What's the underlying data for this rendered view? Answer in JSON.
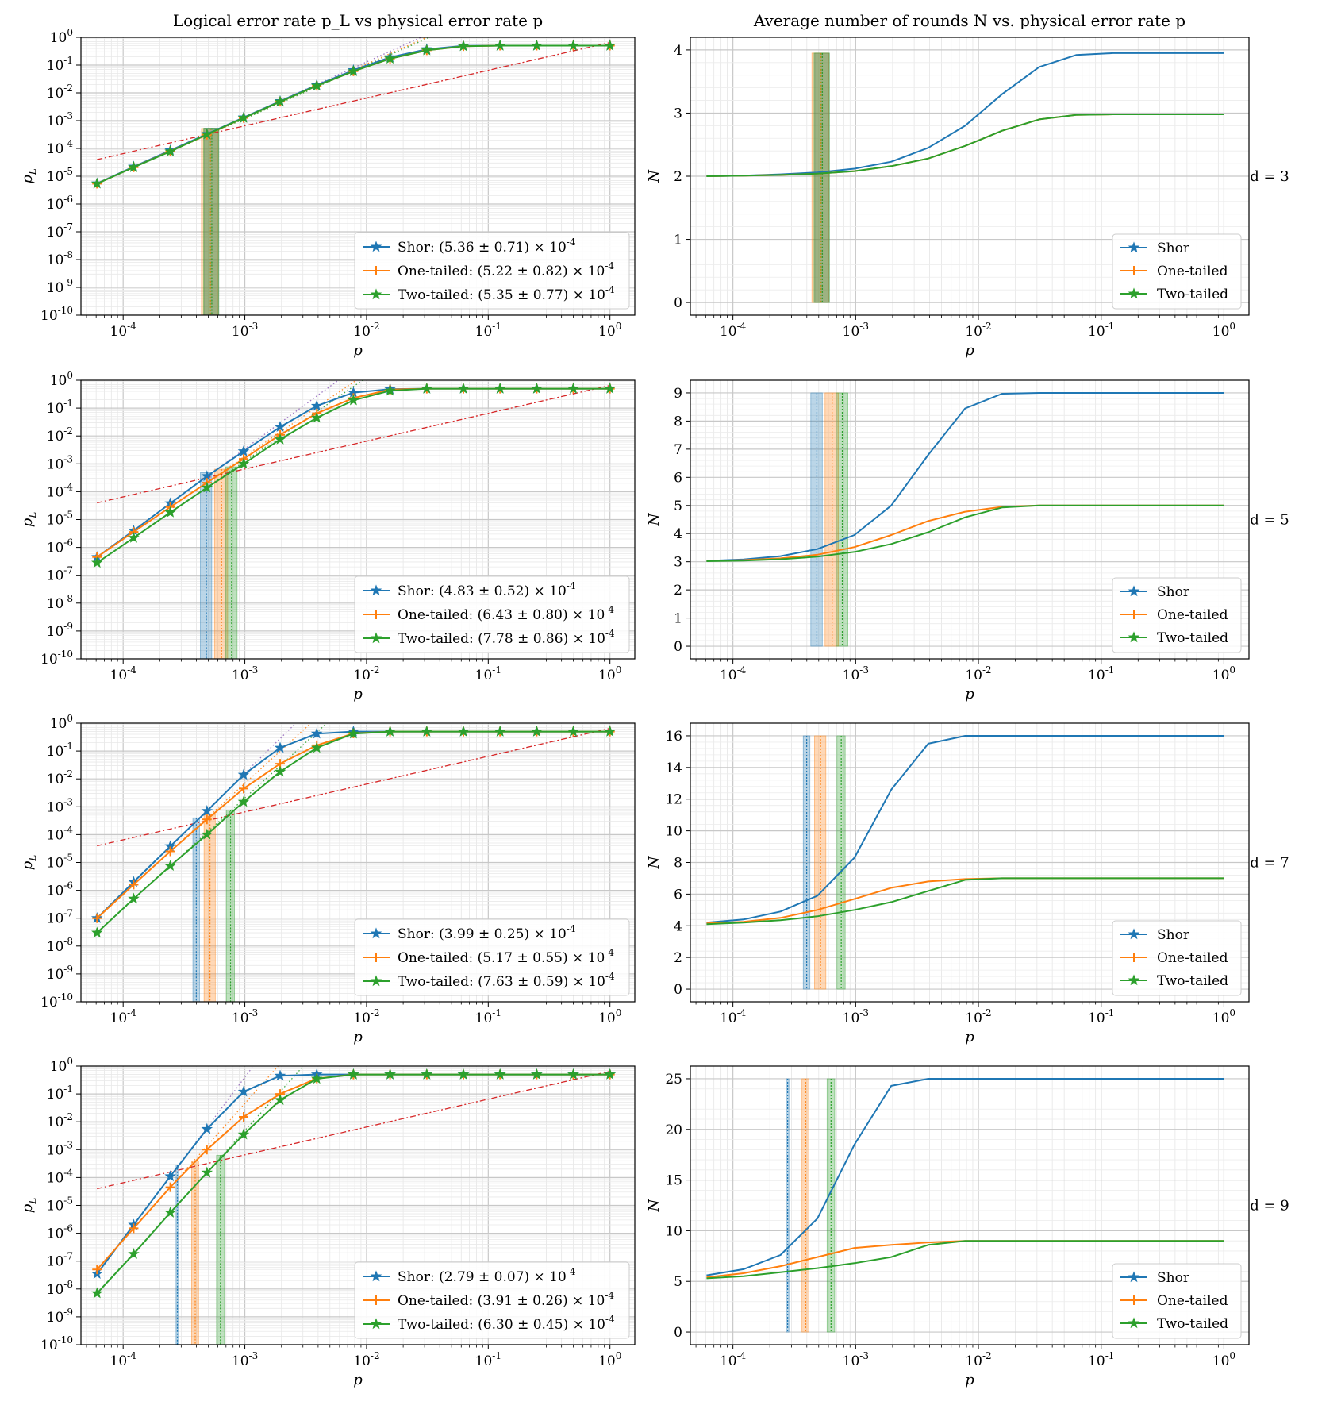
{
  "figure": {
    "left_title": "Logical error rate p_L vs physical error rate p",
    "right_title": "Average number of rounds N vs. physical error rate p"
  },
  "colors": {
    "shor": "#1f77b4",
    "one_tailed": "#ff7f0e",
    "two_tailed": "#2ca02c",
    "pseudo": "#d62728",
    "fit": "#9467bd"
  },
  "chart_data": [
    {
      "type": "line",
      "row": 0,
      "panel": "left",
      "d_label": "d = 3",
      "xscale": "log",
      "yscale": "log",
      "xlim": [
        4.5e-05,
        1.6
      ],
      "ylim": [
        1e-10,
        1
      ],
      "xlabel": "p",
      "ylabel": "p_L",
      "xticks": [
        "10^-4",
        "10^-3",
        "10^-2",
        "10^-1",
        "10^0"
      ],
      "yticks": [
        "10^-10",
        "10^-9",
        "10^-8",
        "10^-7",
        "10^-6",
        "10^-5",
        "10^-4",
        "10^-3",
        "10^-2",
        "10^-1",
        "10^0"
      ],
      "x": [
        6.1e-05,
        0.000122,
        0.000244,
        0.000488,
        0.000977,
        0.00195,
        0.0039,
        0.0078,
        0.0156,
        0.03125,
        0.0625,
        0.125,
        0.25,
        0.5,
        1.0
      ],
      "series": [
        {
          "name": "Shor",
          "legend": "Shor: (5.36 ± 0.71) × 10^-4",
          "values": [
            5.5e-06,
            2.2e-05,
            8.5e-05,
            0.00033,
            0.0013,
            0.005,
            0.019,
            0.065,
            0.19,
            0.37,
            0.49,
            0.5,
            0.5,
            0.5,
            0.5
          ],
          "threshold": 0.000536,
          "err": 7.1e-05
        },
        {
          "name": "One-tailed",
          "legend": "One-tailed: (5.22 ± 0.82) × 10^-4",
          "values": [
            5.4e-06,
            2.1e-05,
            8e-05,
            0.00031,
            0.00125,
            0.0048,
            0.018,
            0.06,
            0.17,
            0.34,
            0.48,
            0.5,
            0.5,
            0.5,
            0.5
          ],
          "threshold": 0.000522,
          "err": 8.2e-05
        },
        {
          "name": "Two-tailed",
          "legend": "Two-tailed: (5.35 ± 0.77) × 10^-4",
          "values": [
            5.4e-06,
            2.1e-05,
            7.8e-05,
            0.00032,
            0.00125,
            0.0048,
            0.018,
            0.06,
            0.17,
            0.34,
            0.48,
            0.5,
            0.5,
            0.5,
            0.5
          ],
          "threshold": 0.000535,
          "err": 7.7e-05
        }
      ]
    },
    {
      "type": "line",
      "row": 0,
      "panel": "right",
      "xscale": "log",
      "yscale": "linear",
      "xlim": [
        4.5e-05,
        1.6
      ],
      "ylim": [
        -0.2,
        4.2
      ],
      "xlabel": "p",
      "ylabel": "N",
      "xticks": [
        "10^-4",
        "10^-3",
        "10^-2",
        "10^-1",
        "10^0"
      ],
      "yticks": [
        "0",
        "1",
        "2",
        "3",
        "4"
      ],
      "x": [
        6.1e-05,
        0.000122,
        0.000244,
        0.000488,
        0.000977,
        0.00195,
        0.0039,
        0.0078,
        0.0156,
        0.03125,
        0.0625,
        0.125,
        0.25,
        0.5,
        1.0
      ],
      "series": [
        {
          "name": "Shor",
          "legend": "Shor",
          "values": [
            2.0,
            2.01,
            2.03,
            2.06,
            2.12,
            2.23,
            2.45,
            2.8,
            3.3,
            3.73,
            3.92,
            3.95,
            3.95,
            3.95,
            3.95
          ],
          "threshold": 0.000536,
          "err": 7.1e-05
        },
        {
          "name": "One-tailed",
          "legend": "One-tailed",
          "values": [
            2.0,
            2.01,
            2.02,
            2.04,
            2.08,
            2.16,
            2.28,
            2.48,
            2.72,
            2.9,
            2.97,
            2.98,
            2.98,
            2.98,
            2.98
          ],
          "threshold": 0.000522,
          "err": 8.2e-05
        },
        {
          "name": "Two-tailed",
          "legend": "Two-tailed",
          "values": [
            2.0,
            2.01,
            2.02,
            2.04,
            2.08,
            2.16,
            2.28,
            2.48,
            2.72,
            2.9,
            2.97,
            2.98,
            2.98,
            2.98,
            2.98
          ],
          "threshold": 0.000535,
          "err": 7.7e-05
        }
      ]
    },
    {
      "type": "line",
      "row": 1,
      "panel": "left",
      "d_label": "d = 5",
      "xscale": "log",
      "yscale": "log",
      "xlim": [
        4.5e-05,
        1.6
      ],
      "ylim": [
        1e-10,
        1
      ],
      "xlabel": "p",
      "ylabel": "p_L",
      "xticks": [
        "10^-4",
        "10^-3",
        "10^-2",
        "10^-1",
        "10^0"
      ],
      "yticks": [
        "10^-10",
        "10^-9",
        "10^-8",
        "10^-7",
        "10^-6",
        "10^-5",
        "10^-4",
        "10^-3",
        "10^-2",
        "10^-1",
        "10^0"
      ],
      "x": [
        6.1e-05,
        0.000122,
        0.000244,
        0.000488,
        0.000977,
        0.00195,
        0.0039,
        0.0078,
        0.0156,
        0.03125,
        0.0625,
        0.125,
        0.25,
        0.5,
        1.0
      ],
      "series": [
        {
          "name": "Shor",
          "legend": "Shor: (4.83 ± 0.52) × 10^-4",
          "values": [
            4.5e-07,
            4e-06,
            3.8e-05,
            0.00036,
            0.0028,
            0.021,
            0.12,
            0.36,
            0.48,
            0.5,
            0.5,
            0.5,
            0.5,
            0.5,
            0.5
          ],
          "threshold": 0.000483,
          "err": 5.2e-05
        },
        {
          "name": "One-tailed",
          "legend": "One-tailed: (6.43 ± 0.80) × 10^-4",
          "values": [
            4.5e-07,
            3.6e-06,
            2.8e-05,
            0.00021,
            0.0015,
            0.011,
            0.065,
            0.23,
            0.46,
            0.5,
            0.5,
            0.5,
            0.5,
            0.5,
            0.5
          ],
          "threshold": 0.000643,
          "err": 8e-05
        },
        {
          "name": "Two-tailed",
          "legend": "Two-tailed: (7.78 ± 0.86) × 10^-4",
          "values": [
            2.8e-07,
            2.2e-06,
            1.8e-05,
            0.00014,
            0.001,
            0.0075,
            0.045,
            0.19,
            0.42,
            0.5,
            0.5,
            0.5,
            0.5,
            0.5,
            0.5
          ],
          "threshold": 0.000778,
          "err": 8.6e-05
        }
      ]
    },
    {
      "type": "line",
      "row": 1,
      "panel": "right",
      "xscale": "log",
      "yscale": "linear",
      "xlim": [
        4.5e-05,
        1.6
      ],
      "ylim": [
        -0.45,
        9.45
      ],
      "xlabel": "p",
      "ylabel": "N",
      "xticks": [
        "10^-4",
        "10^-3",
        "10^-2",
        "10^-1",
        "10^0"
      ],
      "yticks": [
        "0",
        "1",
        "2",
        "3",
        "4",
        "5",
        "6",
        "7",
        "8",
        "9"
      ],
      "x": [
        6.1e-05,
        0.000122,
        0.000244,
        0.000488,
        0.000977,
        0.00195,
        0.0039,
        0.0078,
        0.0156,
        0.03125,
        0.0625,
        0.125,
        0.25,
        0.5,
        1.0
      ],
      "series": [
        {
          "name": "Shor",
          "legend": "Shor",
          "values": [
            3.03,
            3.08,
            3.2,
            3.45,
            3.95,
            5.0,
            6.8,
            8.45,
            8.97,
            9.0,
            9.0,
            9.0,
            9.0,
            9.0,
            9.0
          ],
          "threshold": 0.000483,
          "err": 5.2e-05
        },
        {
          "name": "One-tailed",
          "legend": "One-tailed",
          "values": [
            3.03,
            3.06,
            3.12,
            3.25,
            3.52,
            3.95,
            4.45,
            4.78,
            4.95,
            5.0,
            5.0,
            5.0,
            5.0,
            5.0,
            5.0
          ],
          "threshold": 0.000643,
          "err": 8e-05
        },
        {
          "name": "Two-tailed",
          "legend": "Two-tailed",
          "values": [
            3.02,
            3.04,
            3.09,
            3.18,
            3.35,
            3.63,
            4.05,
            4.58,
            4.93,
            5.0,
            5.0,
            5.0,
            5.0,
            5.0,
            5.0
          ],
          "threshold": 0.000778,
          "err": 8.6e-05
        }
      ]
    },
    {
      "type": "line",
      "row": 2,
      "panel": "left",
      "d_label": "d = 7",
      "xscale": "log",
      "yscale": "log",
      "xlim": [
        4.5e-05,
        1.6
      ],
      "ylim": [
        1e-10,
        1
      ],
      "xlabel": "p",
      "ylabel": "p_L",
      "xticks": [
        "10^-4",
        "10^-3",
        "10^-2",
        "10^-1",
        "10^0"
      ],
      "yticks": [
        "10^-10",
        "10^-9",
        "10^-8",
        "10^-7",
        "10^-6",
        "10^-5",
        "10^-4",
        "10^-3",
        "10^-2",
        "10^-1",
        "10^0"
      ],
      "x": [
        6.1e-05,
        0.000122,
        0.000244,
        0.000488,
        0.000977,
        0.00195,
        0.0039,
        0.0078,
        0.0156,
        0.03125,
        0.0625,
        0.125,
        0.25,
        0.5,
        1.0
      ],
      "series": [
        {
          "name": "Shor",
          "legend": "Shor: (3.99 ± 0.25) × 10^-4",
          "values": [
            1e-07,
            2e-06,
            3.8e-05,
            0.0007,
            0.014,
            0.13,
            0.42,
            0.5,
            0.5,
            0.5,
            0.5,
            0.5,
            0.5,
            0.5,
            0.5
          ],
          "threshold": 0.000399,
          "err": 2.5e-05
        },
        {
          "name": "One-tailed",
          "legend": "One-tailed: (5.17 ± 0.55) × 10^-4",
          "values": [
            1e-07,
            1.6e-06,
            2.5e-05,
            0.00035,
            0.0045,
            0.035,
            0.16,
            0.43,
            0.5,
            0.5,
            0.5,
            0.5,
            0.5,
            0.5,
            0.5
          ],
          "threshold": 0.000517,
          "err": 5.5e-05
        },
        {
          "name": "Two-tailed",
          "legend": "Two-tailed: (7.63 ± 0.59) × 10^-4",
          "values": [
            3e-08,
            5e-07,
            7.5e-06,
            0.0001,
            0.0015,
            0.018,
            0.13,
            0.42,
            0.5,
            0.5,
            0.5,
            0.5,
            0.5,
            0.5,
            0.5
          ],
          "threshold": 0.000763,
          "err": 5.9e-05
        }
      ]
    },
    {
      "type": "line",
      "row": 2,
      "panel": "right",
      "xscale": "log",
      "yscale": "linear",
      "xlim": [
        4.5e-05,
        1.6
      ],
      "ylim": [
        -0.8,
        16.8
      ],
      "xlabel": "p",
      "ylabel": "N",
      "xticks": [
        "10^-4",
        "10^-3",
        "10^-2",
        "10^-1",
        "10^0"
      ],
      "yticks": [
        "0",
        "2",
        "4",
        "6",
        "8",
        "10",
        "12",
        "14",
        "16"
      ],
      "x": [
        6.1e-05,
        0.000122,
        0.000244,
        0.000488,
        0.000977,
        0.00195,
        0.0039,
        0.0078,
        0.0156,
        0.03125,
        0.0625,
        0.125,
        0.25,
        0.5,
        1.0
      ],
      "series": [
        {
          "name": "Shor",
          "legend": "Shor",
          "values": [
            4.2,
            4.4,
            4.9,
            5.9,
            8.3,
            12.6,
            15.5,
            16.0,
            16.0,
            16.0,
            16.0,
            16.0,
            16.0,
            16.0,
            16.0
          ],
          "threshold": 0.000399,
          "err": 2.5e-05
        },
        {
          "name": "One-tailed",
          "legend": "One-tailed",
          "values": [
            4.15,
            4.25,
            4.5,
            5.0,
            5.7,
            6.4,
            6.8,
            6.95,
            7.0,
            7.0,
            7.0,
            7.0,
            7.0,
            7.0,
            7.0
          ],
          "threshold": 0.000517,
          "err": 5.5e-05
        },
        {
          "name": "Two-tailed",
          "legend": "Two-tailed",
          "values": [
            4.1,
            4.2,
            4.35,
            4.6,
            5.0,
            5.5,
            6.2,
            6.9,
            7.0,
            7.0,
            7.0,
            7.0,
            7.0,
            7.0,
            7.0
          ],
          "threshold": 0.000763,
          "err": 5.9e-05
        }
      ]
    },
    {
      "type": "line",
      "row": 3,
      "panel": "left",
      "d_label": "d = 9",
      "xscale": "log",
      "yscale": "log",
      "xlim": [
        4.5e-05,
        1.6
      ],
      "ylim": [
        1e-10,
        1
      ],
      "xlabel": "p",
      "ylabel": "p_L",
      "xticks": [
        "10^-4",
        "10^-3",
        "10^-2",
        "10^-1",
        "10^0"
      ],
      "yticks": [
        "10^-10",
        "10^-9",
        "10^-8",
        "10^-7",
        "10^-6",
        "10^-5",
        "10^-4",
        "10^-3",
        "10^-2",
        "10^-1",
        "10^0"
      ],
      "x": [
        6.1e-05,
        0.000122,
        0.000244,
        0.000488,
        0.000977,
        0.00195,
        0.0039,
        0.0078,
        0.0156,
        0.03125,
        0.0625,
        0.125,
        0.25,
        0.5,
        1.0
      ],
      "series": [
        {
          "name": "Shor",
          "legend": "Shor: (2.79 ± 0.07) × 10^-4",
          "values": [
            3.5e-08,
            2e-06,
            0.00011,
            0.0055,
            0.12,
            0.45,
            0.5,
            0.5,
            0.5,
            0.5,
            0.5,
            0.5,
            0.5,
            0.5,
            0.5
          ],
          "threshold": 0.000279,
          "err": 7e-06
        },
        {
          "name": "One-tailed",
          "legend": "One-tailed: (3.91 ± 0.26) × 10^-4",
          "values": [
            5e-08,
            1.5e-06,
            4.5e-05,
            0.001,
            0.015,
            0.1,
            0.36,
            0.5,
            0.5,
            0.5,
            0.5,
            0.5,
            0.5,
            0.5,
            0.5
          ],
          "threshold": 0.000391,
          "err": 2.6e-05
        },
        {
          "name": "Two-tailed",
          "legend": "Two-tailed: (6.30 ± 0.45) × 10^-4",
          "values": [
            7e-09,
            1.8e-07,
            5.5e-06,
            0.00015,
            0.0035,
            0.06,
            0.35,
            0.5,
            0.5,
            0.5,
            0.5,
            0.5,
            0.5,
            0.5,
            0.5
          ],
          "threshold": 0.00063,
          "err": 4.5e-05
        }
      ]
    },
    {
      "type": "line",
      "row": 3,
      "panel": "right",
      "xscale": "log",
      "yscale": "linear",
      "xlim": [
        4.5e-05,
        1.6
      ],
      "ylim": [
        -1.25,
        26.25
      ],
      "xlabel": "p",
      "ylabel": "N",
      "xticks": [
        "10^-4",
        "10^-3",
        "10^-2",
        "10^-1",
        "10^0"
      ],
      "yticks": [
        "0",
        "5",
        "10",
        "15",
        "20",
        "25"
      ],
      "x": [
        6.1e-05,
        0.000122,
        0.000244,
        0.000488,
        0.000977,
        0.00195,
        0.0039,
        0.0078,
        0.0156,
        0.03125,
        0.0625,
        0.125,
        0.25,
        0.5,
        1.0
      ],
      "series": [
        {
          "name": "Shor",
          "legend": "Shor",
          "values": [
            5.6,
            6.2,
            7.6,
            11.2,
            18.5,
            24.3,
            25.0,
            25.0,
            25.0,
            25.0,
            25.0,
            25.0,
            25.0,
            25.0,
            25.0
          ],
          "threshold": 0.000279,
          "err": 7e-06
        },
        {
          "name": "One-tailed",
          "legend": "One-tailed",
          "values": [
            5.4,
            5.8,
            6.5,
            7.4,
            8.3,
            8.6,
            8.85,
            9.0,
            9.0,
            9.0,
            9.0,
            9.0,
            9.0,
            9.0,
            9.0
          ],
          "threshold": 0.000391,
          "err": 2.6e-05
        },
        {
          "name": "Two-tailed",
          "legend": "Two-tailed",
          "values": [
            5.3,
            5.5,
            5.9,
            6.3,
            6.8,
            7.4,
            8.6,
            9.0,
            9.0,
            9.0,
            9.0,
            9.0,
            9.0,
            9.0,
            9.0
          ],
          "threshold": 0.00063,
          "err": 4.5e-05
        }
      ]
    }
  ]
}
